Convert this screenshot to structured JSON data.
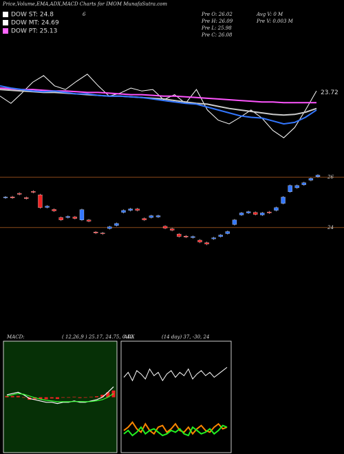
{
  "header": {
    "title": "Price,Volume,EMA,ADX,MACD Charts for IMOM MunafaSutra.com",
    "legend": [
      {
        "label": "DOW ST: 24.8",
        "color": "#ffffff"
      },
      {
        "label": "DOW MT: 24.69",
        "color": "#ffffff"
      },
      {
        "label": "DOW PT: 25.13",
        "color": "#ff66ff"
      }
    ],
    "extra": "6",
    "stats_left": [
      "Pre  O: 26.02",
      "Pre  H: 26.09",
      "Pre  L: 25.98",
      "Pre  C: 26.08"
    ],
    "stats_right": [
      "Avg V: 0  M",
      "Pre  V: 0.003 M"
    ]
  },
  "chart_data": [
    {
      "type": "line",
      "annotation": "23.72",
      "ylim": [
        22.8,
        24.4
      ],
      "series": [
        {
          "color": "#ffffff",
          "values": [
            23.65,
            23.55,
            23.69,
            23.84,
            23.93,
            23.79,
            23.74,
            23.85,
            23.95,
            23.79,
            23.65,
            23.69,
            23.76,
            23.72,
            23.74,
            23.6,
            23.67,
            23.55,
            23.74,
            23.46,
            23.32,
            23.27,
            23.36,
            23.46,
            23.35,
            23.18,
            23.08,
            23.22,
            23.46,
            23.72
          ]
        },
        {
          "color": "#ff55ff",
          "values": [
            23.76,
            23.75,
            23.74,
            23.74,
            23.73,
            23.72,
            23.72,
            23.71,
            23.7,
            23.7,
            23.69,
            23.68,
            23.67,
            23.67,
            23.66,
            23.65,
            23.65,
            23.64,
            23.63,
            23.62,
            23.61,
            23.6,
            23.59,
            23.58,
            23.57,
            23.57,
            23.56,
            23.56,
            23.56,
            23.56
          ]
        },
        {
          "color": "#cccccc",
          "values": [
            23.74,
            23.73,
            23.72,
            23.71,
            23.7,
            23.7,
            23.69,
            23.68,
            23.67,
            23.66,
            23.65,
            23.65,
            23.64,
            23.63,
            23.62,
            23.61,
            23.59,
            23.57,
            23.55,
            23.54,
            23.51,
            23.48,
            23.46,
            23.44,
            23.42,
            23.4,
            23.39,
            23.4,
            23.43,
            23.48
          ]
        },
        {
          "color": "#3377ff",
          "values": [
            23.79,
            23.76,
            23.74,
            23.72,
            23.71,
            23.72,
            23.7,
            23.68,
            23.68,
            23.66,
            23.65,
            23.65,
            23.64,
            23.63,
            23.61,
            23.59,
            23.57,
            23.55,
            23.54,
            23.5,
            23.46,
            23.42,
            23.38,
            23.36,
            23.35,
            23.31,
            23.27,
            23.29,
            23.36,
            23.46
          ]
        }
      ]
    },
    {
      "type": "candlestick",
      "ylim": [
        23.2,
        26.4
      ],
      "yticks": [
        24,
        26
      ],
      "up_color": "#3377ff",
      "down_color": "#ee2222",
      "open": [
        25.18,
        25.22,
        25.36,
        25.19,
        25.44,
        25.3,
        24.8,
        24.72,
        24.4,
        24.4,
        24.42,
        24.3,
        24.3,
        23.82,
        23.78,
        23.96,
        24.08,
        24.6,
        24.68,
        24.74,
        24.36,
        24.4,
        24.42,
        24.05,
        23.95,
        23.74,
        23.66,
        23.6,
        23.5,
        23.4,
        23.55,
        23.64,
        23.76,
        24.12,
        24.5,
        24.58,
        24.6,
        24.5,
        24.62,
        24.68,
        24.96,
        25.42,
        25.58,
        25.7,
        25.88,
        26.02
      ],
      "high": [
        25.25,
        25.26,
        25.4,
        25.23,
        25.48,
        25.34,
        24.89,
        24.76,
        24.44,
        24.48,
        24.46,
        24.75,
        24.34,
        23.86,
        23.82,
        24.07,
        24.2,
        24.72,
        24.78,
        24.78,
        24.4,
        24.51,
        24.51,
        24.09,
        23.99,
        23.78,
        23.7,
        23.68,
        23.54,
        23.44,
        23.63,
        23.74,
        23.88,
        24.34,
        24.62,
        24.67,
        24.64,
        24.62,
        24.66,
        24.83,
        25.25,
        25.71,
        25.71,
        25.82,
        25.99,
        26.12
      ],
      "low": [
        25.14,
        25.14,
        25.28,
        25.11,
        25.36,
        24.75,
        24.76,
        24.62,
        24.26,
        24.36,
        24.32,
        24.26,
        24.21,
        23.74,
        23.71,
        23.92,
        24.04,
        24.56,
        24.64,
        24.64,
        24.26,
        24.36,
        24.38,
        23.93,
        23.85,
        23.6,
        23.58,
        23.56,
        23.38,
        23.3,
        23.51,
        23.6,
        23.72,
        24.08,
        24.46,
        24.54,
        24.48,
        24.46,
        24.54,
        24.64,
        24.92,
        25.38,
        25.54,
        25.66,
        25.84,
        25.98
      ],
      "close": [
        25.21,
        25.18,
        25.32,
        25.15,
        25.4,
        24.79,
        24.85,
        24.66,
        24.3,
        24.44,
        24.36,
        24.71,
        24.25,
        23.78,
        23.75,
        24.03,
        24.16,
        24.68,
        24.74,
        24.68,
        24.3,
        24.47,
        24.47,
        23.97,
        23.89,
        23.64,
        23.62,
        23.64,
        23.42,
        23.34,
        23.59,
        23.7,
        23.84,
        24.3,
        24.58,
        24.63,
        24.52,
        24.58,
        24.58,
        24.79,
        25.21,
        25.67,
        25.67,
        25.78,
        25.95,
        26.08
      ]
    },
    {
      "type": "macd",
      "title": "MACD:",
      "subtitle": "( 12,26,9 ) 25.17,  24.75,  0.42",
      "ylim": [
        -2,
        2
      ],
      "histogram": {
        "color": "#ee2222",
        "values": [
          0.05,
          0.05,
          0.05,
          -0.02,
          -0.1,
          -0.08,
          -0.07,
          -0.08,
          -0.05,
          -0.07,
          -0.02,
          -0.02,
          0.02,
          -0.03,
          -0.02,
          0.02,
          0.04,
          0.1,
          0.2,
          0.27
        ]
      },
      "series": [
        {
          "color": "#ffffff",
          "values": [
            0.1,
            0.15,
            0.2,
            0.1,
            -0.05,
            -0.1,
            -0.15,
            -0.2,
            -0.2,
            -0.25,
            -0.2,
            -0.2,
            -0.15,
            -0.2,
            -0.2,
            -0.15,
            -0.1,
            0,
            0.2,
            0.42
          ]
        },
        {
          "color": "#33ff33",
          "values": [
            0.05,
            0.1,
            0.15,
            0.12,
            0.05,
            -0.02,
            -0.08,
            -0.12,
            -0.15,
            -0.18,
            -0.18,
            -0.18,
            -0.17,
            -0.17,
            -0.18,
            -0.17,
            -0.14,
            -0.1,
            0.0,
            0.15
          ]
        }
      ]
    },
    {
      "type": "line",
      "title": "ADX",
      "subtitle": "(14  day) 37,  -30,  24",
      "ylim": [
        0,
        60
      ],
      "series": [
        {
          "color": "#ffffff",
          "values": [
            42,
            45,
            40,
            46,
            44,
            41,
            47,
            43,
            45,
            40,
            44,
            46,
            42,
            45,
            43,
            47,
            41,
            44,
            46,
            43,
            45,
            42,
            44,
            46,
            48
          ]
        },
        {
          "color": "#ff8800",
          "values": [
            10,
            12,
            15,
            11,
            9,
            14,
            10,
            8,
            12,
            13,
            9,
            11,
            14,
            10,
            9,
            12,
            8,
            11,
            13,
            10,
            9,
            12,
            14,
            11,
            12
          ]
        },
        {
          "color": "#22ee22",
          "values": [
            8,
            10,
            7,
            9,
            12,
            8,
            10,
            11,
            9,
            7,
            8,
            10,
            9,
            11,
            8,
            7,
            12,
            10,
            8,
            9,
            11,
            8,
            10,
            13,
            12
          ]
        }
      ]
    }
  ]
}
